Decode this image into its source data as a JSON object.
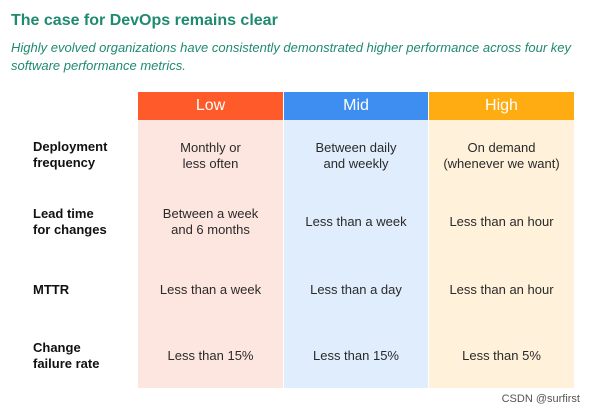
{
  "title": "The case for DevOps remains clear",
  "subtitle": "Highly evolved organizations have consistently demonstrated higher performance across four key software performance metrics.",
  "colors": {
    "accent": "#1f8a70",
    "low_header": "#ff5a2a",
    "mid_header": "#3d8ef0",
    "high_header": "#ffab12",
    "low_bg": "#fde6df",
    "mid_bg": "#e0edfd",
    "high_bg": "#fff1da"
  },
  "columns": [
    "Low",
    "Mid",
    "High"
  ],
  "rows": [
    {
      "label": "Deployment\nfrequency",
      "low": "Monthly or\nless often",
      "mid": "Between daily\nand weekly",
      "high": "On demand\n(whenever we want)"
    },
    {
      "label": "Lead time\nfor changes",
      "low": "Between a week\nand 6 months",
      "mid": "Less than a week",
      "high": "Less than an hour"
    },
    {
      "label": "MTTR",
      "low": "Less than a week",
      "mid": "Less than a day",
      "high": "Less than an hour"
    },
    {
      "label": "Change\nfailure rate",
      "low": "Less than 15%",
      "mid": "Less than 15%",
      "high": "Less than 5%"
    }
  ],
  "watermark": "CSDN @surfirst"
}
